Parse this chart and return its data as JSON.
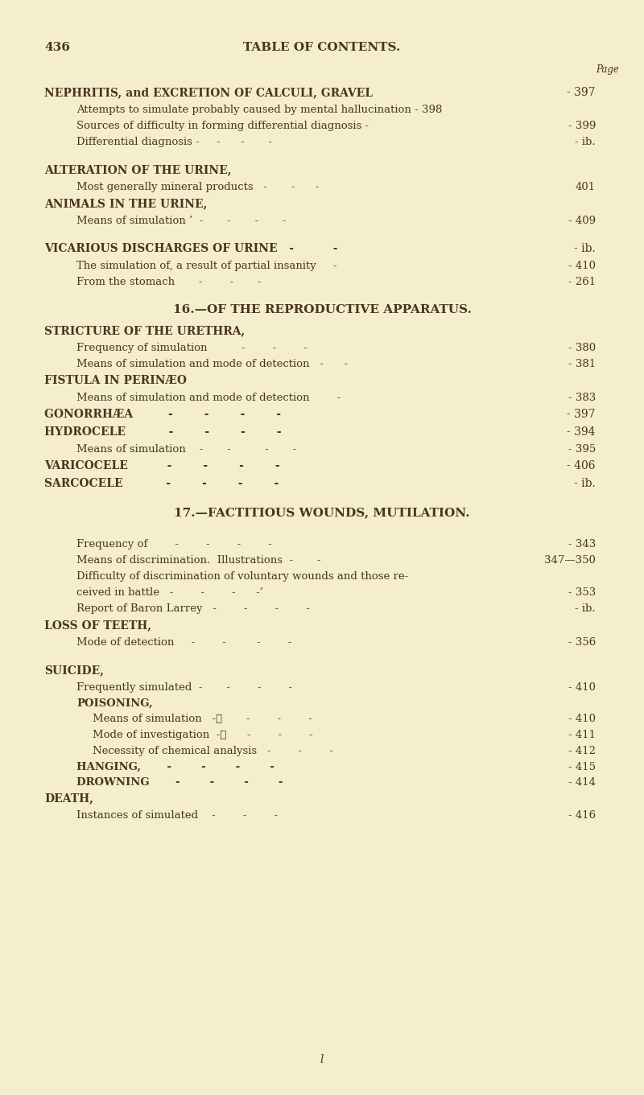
{
  "bg_color": "#f5eecc",
  "text_color": "#4a3520",
  "page_num": "436",
  "page_header": "TABLE OF CONTENTS.",
  "page_label": "Page",
  "footer_char": "l",
  "lines": [
    {
      "type": "major",
      "text": "NEPHRITIS, and EXCRETION OF CALCULI, GRAVEL",
      "page": "- 397",
      "indent": 0
    },
    {
      "type": "minor",
      "text": "Attempts to simulate probably caused by mental hallucination - 398",
      "page": "",
      "indent": 1
    },
    {
      "type": "minor",
      "text": "Sources of difficulty in forming differential diagnosis -",
      "page": "- 399",
      "indent": 1
    },
    {
      "type": "minor",
      "text": "Differential diagnosis -     -      -       -",
      "page": "- ib.",
      "indent": 1
    },
    {
      "type": "blank"
    },
    {
      "type": "major",
      "text": "ALTERATION OF THE URINE,",
      "page": "",
      "indent": 0
    },
    {
      "type": "minor",
      "text": "Most generally mineral products   -       -      -",
      "page": "401",
      "indent": 1
    },
    {
      "type": "major",
      "text": "ANIMALS IN THE URINE,",
      "page": "",
      "indent": 0
    },
    {
      "type": "minor",
      "text": "Means of simulation ’  -       -       -       -",
      "page": "- 409",
      "indent": 1
    },
    {
      "type": "blank"
    },
    {
      "type": "major",
      "text": "VICARIOUS DISCHARGES OF URINE   -          -",
      "page": "- ib.",
      "indent": 0
    },
    {
      "type": "minor",
      "text": "The simulation of, a result of partial insanity     -",
      "page": "- 410",
      "indent": 1
    },
    {
      "type": "minor",
      "text": "From the stomach       -        -       -",
      "page": "- 261",
      "indent": 1
    },
    {
      "type": "blank"
    },
    {
      "type": "section",
      "text": "16.—OF THE REPRODUCTIVE APPARATUS.",
      "page": "",
      "indent": 0
    },
    {
      "type": "major",
      "text": "STRICTURE OF THE URETHRA,",
      "page": "",
      "indent": 0
    },
    {
      "type": "minor",
      "text": "Frequency of simulation          -        -        -",
      "page": "- 380",
      "indent": 1
    },
    {
      "type": "minor",
      "text": "Means of simulation and mode of detection   -      -",
      "page": "- 381",
      "indent": 1
    },
    {
      "type": "major",
      "text": "FISTULA IN PERINÆO",
      "page": "",
      "indent": 0
    },
    {
      "type": "minor",
      "text": "Means of simulation and mode of detection        -",
      "page": "- 383",
      "indent": 1
    },
    {
      "type": "major",
      "text": "GONORRHÆA         -        -        -        -",
      "page": "- 397",
      "indent": 0
    },
    {
      "type": "major",
      "text": "HYDROCELE           -        -        -        -",
      "page": "- 394",
      "indent": 0
    },
    {
      "type": "minor",
      "text": "Means of simulation    -       -          -       -",
      "page": "- 395",
      "indent": 1
    },
    {
      "type": "major",
      "text": "VARICOCELE          -        -        -        -",
      "page": "- 406",
      "indent": 0
    },
    {
      "type": "major",
      "text": "SARCOCELE           -        -        -        -",
      "page": "- ib.",
      "indent": 0
    },
    {
      "type": "blank"
    },
    {
      "type": "section",
      "text": "17.—FACTITIOUS WOUNDS, MUTILATION.",
      "page": "",
      "indent": 0
    },
    {
      "type": "blank"
    },
    {
      "type": "minor",
      "text": "Frequency of        -        -        -        -",
      "page": "- 343",
      "indent": 1
    },
    {
      "type": "minor",
      "text": "Means of discrimination.  Illustrations  -       -",
      "page": "347—350",
      "indent": 1
    },
    {
      "type": "minor",
      "text": "Difficulty of discrimination of voluntary wounds and those re-",
      "page": "",
      "indent": 1
    },
    {
      "type": "minor2",
      "text": "ceived in battle   -        -        -      -’",
      "page": "- 353",
      "indent": 1
    },
    {
      "type": "minor",
      "text": "Report of Baron Larrey   -        -        -        -",
      "page": "- ib.",
      "indent": 1
    },
    {
      "type": "major",
      "text": "LOSS OF TEETH,",
      "page": "",
      "indent": 0
    },
    {
      "type": "minor",
      "text": "Mode of detection     -        -         -        -",
      "page": "- 356",
      "indent": 1
    },
    {
      "type": "blank"
    },
    {
      "type": "major",
      "text": "SUICIDE,",
      "page": "",
      "indent": 0
    },
    {
      "type": "minor",
      "text": "Frequently simulated  -       -        -        -",
      "page": "- 410",
      "indent": 1
    },
    {
      "type": "smallmaj",
      "text": "POISONING,",
      "page": "",
      "indent": 1
    },
    {
      "type": "minor2",
      "text": "Means of simulation   -‧       -        -        -",
      "page": "- 410",
      "indent": 2
    },
    {
      "type": "minor2",
      "text": "Mode of investigation  -‧      -        -        -",
      "page": "- 411",
      "indent": 2
    },
    {
      "type": "minor2",
      "text": "Necessity of chemical analysis   -        -        -",
      "page": "- 412",
      "indent": 2
    },
    {
      "type": "smallmaj",
      "text": "HANGING,       -        -        -        -",
      "page": "- 415",
      "indent": 1
    },
    {
      "type": "smallmaj",
      "text": "DROWNING       -        -        -        -",
      "page": "- 414",
      "indent": 1
    },
    {
      "type": "major",
      "text": "DEATH,",
      "page": "",
      "indent": 0
    },
    {
      "type": "minor",
      "text": "Instances of simulated    -        -        -",
      "page": "- 416",
      "indent": 1
    }
  ]
}
